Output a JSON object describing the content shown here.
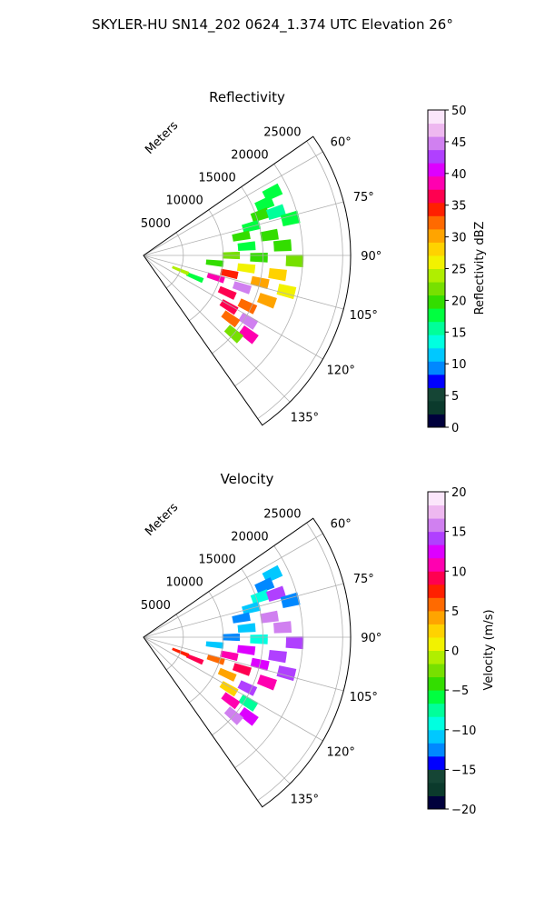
{
  "figure": {
    "suptitle": "SKYLER-HU  SN14_202  0624_1.374 UTC Elevation 26°"
  },
  "chart_data": [
    {
      "type": "heatmap",
      "subtype": "polar-sector-ppi",
      "title": "Reflectivity",
      "radial_label": "Meters",
      "radial_ticks": [
        5000,
        10000,
        15000,
        20000,
        25000
      ],
      "radial_tick_labels": [
        "5000",
        "10000",
        "15000",
        "20000",
        "25000"
      ],
      "r_range": [
        0,
        26000
      ],
      "theta_range_deg": [
        55,
        145
      ],
      "angle_ticks": [
        60,
        75,
        90,
        105,
        120,
        135
      ],
      "angle_tick_labels": [
        "60°",
        "75°",
        "90°",
        "105°",
        "120°",
        "135°"
      ],
      "grid": true,
      "colorbar": {
        "label": "Reflectivity dBZ",
        "range": [
          0,
          50
        ],
        "ticks": [
          0,
          5,
          10,
          15,
          20,
          25,
          30,
          35,
          40,
          45,
          50
        ],
        "tick_labels": [
          "0",
          "5",
          "10",
          "15",
          "20",
          "25",
          "30",
          "35",
          "40",
          "45",
          "50"
        ],
        "colors": [
          "#00003c",
          "#0b3a2c",
          "#154535",
          "#0000ff",
          "#0088ff",
          "#00c8ff",
          "#00ffe0",
          "#00ff9a",
          "#00ff40",
          "#33dd00",
          "#77e000",
          "#b0ee00",
          "#f2f200",
          "#ffd200",
          "#ffa400",
          "#ff6a00",
          "#ff2000",
          "#ff0050",
          "#ff00b0",
          "#dd00ff",
          "#b040ff",
          "#d080f0",
          "#eeb8f0",
          "#fbe6fb"
        ]
      },
      "cells": [
        {
          "r": 18000,
          "theta": 64,
          "v": 18
        },
        {
          "r": 16500,
          "theta": 67,
          "v": 17
        },
        {
          "r": 15500,
          "theta": 71,
          "v": 19
        },
        {
          "r": 17500,
          "theta": 72,
          "v": 16
        },
        {
          "r": 14000,
          "theta": 75,
          "v": 18
        },
        {
          "r": 19000,
          "theta": 76,
          "v": 17
        },
        {
          "r": 12500,
          "theta": 79,
          "v": 19
        },
        {
          "r": 16000,
          "theta": 81,
          "v": 20
        },
        {
          "r": 13000,
          "theta": 85,
          "v": 18
        },
        {
          "r": 17500,
          "theta": 86,
          "v": 19
        },
        {
          "r": 11000,
          "theta": 90,
          "v": 21
        },
        {
          "r": 14500,
          "theta": 91,
          "v": 20
        },
        {
          "r": 19000,
          "theta": 92,
          "v": 22
        },
        {
          "r": 9000,
          "theta": 96,
          "v": 20
        },
        {
          "r": 13000,
          "theta": 97,
          "v": 25
        },
        {
          "r": 17000,
          "theta": 98,
          "v": 28
        },
        {
          "r": 11000,
          "theta": 102,
          "v": 35
        },
        {
          "r": 15000,
          "theta": 103,
          "v": 31
        },
        {
          "r": 18500,
          "theta": 104,
          "v": 27
        },
        {
          "r": 9500,
          "theta": 107,
          "v": 38
        },
        {
          "r": 13000,
          "theta": 108,
          "v": 44
        },
        {
          "r": 16500,
          "theta": 110,
          "v": 30
        },
        {
          "r": 11500,
          "theta": 114,
          "v": 37
        },
        {
          "r": 14500,
          "theta": 116,
          "v": 33
        },
        {
          "r": 12500,
          "theta": 121,
          "v": 36
        },
        {
          "r": 15500,
          "theta": 122,
          "v": 45
        },
        {
          "r": 13500,
          "theta": 126,
          "v": 32
        },
        {
          "r": 16500,
          "theta": 127,
          "v": 38
        },
        {
          "r": 15000,
          "theta": 131,
          "v": 22
        },
        {
          "r": 7000,
          "theta": 113,
          "v": 18
        },
        {
          "r": 5000,
          "theta": 112,
          "v": 24
        }
      ]
    },
    {
      "type": "heatmap",
      "subtype": "polar-sector-ppi",
      "title": "Velocity",
      "radial_label": "Meters",
      "radial_ticks": [
        5000,
        10000,
        15000,
        20000,
        25000
      ],
      "radial_tick_labels": [
        "5000",
        "10000",
        "15000",
        "20000",
        "25000"
      ],
      "r_range": [
        0,
        26000
      ],
      "theta_range_deg": [
        55,
        145
      ],
      "angle_ticks": [
        60,
        75,
        90,
        105,
        120,
        135
      ],
      "angle_tick_labels": [
        "60°",
        "75°",
        "90°",
        "105°",
        "120°",
        "135°"
      ],
      "grid": true,
      "colorbar": {
        "label": "Velocity (m/s)",
        "range": [
          -20,
          20
        ],
        "ticks": [
          -20,
          -15,
          -10,
          -5,
          0,
          5,
          10,
          15,
          20
        ],
        "tick_labels": [
          "−20",
          "−15",
          "−10",
          "−5",
          "0",
          "5",
          "10",
          "15",
          "20"
        ],
        "colors": [
          "#00003c",
          "#0b3a2c",
          "#154535",
          "#0000ff",
          "#0088ff",
          "#00c8ff",
          "#00ffe0",
          "#00ff9a",
          "#00ff40",
          "#33dd00",
          "#77e000",
          "#b0ee00",
          "#f2f200",
          "#ffd200",
          "#ffa400",
          "#ff6a00",
          "#ff2000",
          "#ff0050",
          "#ff00b0",
          "#dd00ff",
          "#b040ff",
          "#d080f0",
          "#eeb8f0",
          "#fbe6fb"
        ]
      },
      "cells": [
        {
          "r": 18000,
          "theta": 64,
          "v": -11
        },
        {
          "r": 16500,
          "theta": 67,
          "v": -12
        },
        {
          "r": 15500,
          "theta": 71,
          "v": -10
        },
        {
          "r": 17500,
          "theta": 72,
          "v": 14
        },
        {
          "r": 14000,
          "theta": 75,
          "v": -11
        },
        {
          "r": 19000,
          "theta": 76,
          "v": -13
        },
        {
          "r": 12500,
          "theta": 79,
          "v": -12
        },
        {
          "r": 16000,
          "theta": 81,
          "v": 16
        },
        {
          "r": 13000,
          "theta": 85,
          "v": -11
        },
        {
          "r": 17500,
          "theta": 86,
          "v": 15
        },
        {
          "r": 11000,
          "theta": 90,
          "v": -12
        },
        {
          "r": 14500,
          "theta": 91,
          "v": -9
        },
        {
          "r": 19000,
          "theta": 92,
          "v": 14
        },
        {
          "r": 9000,
          "theta": 96,
          "v": -11
        },
        {
          "r": 13000,
          "theta": 97,
          "v": 12
        },
        {
          "r": 17000,
          "theta": 98,
          "v": 14
        },
        {
          "r": 11000,
          "theta": 102,
          "v": 11
        },
        {
          "r": 15000,
          "theta": 103,
          "v": 13
        },
        {
          "r": 18500,
          "theta": 104,
          "v": 14
        },
        {
          "r": 9500,
          "theta": 107,
          "v": 6
        },
        {
          "r": 13000,
          "theta": 108,
          "v": 9
        },
        {
          "r": 16500,
          "theta": 110,
          "v": 11
        },
        {
          "r": 11500,
          "theta": 114,
          "v": 4
        },
        {
          "r": 14500,
          "theta": 116,
          "v": 14
        },
        {
          "r": 12500,
          "theta": 121,
          "v": 3
        },
        {
          "r": 15500,
          "theta": 122,
          "v": -8
        },
        {
          "r": 13500,
          "theta": 126,
          "v": 11
        },
        {
          "r": 16500,
          "theta": 127,
          "v": 13
        },
        {
          "r": 15000,
          "theta": 131,
          "v": 15
        },
        {
          "r": 7000,
          "theta": 113,
          "v": 9
        },
        {
          "r": 5000,
          "theta": 112,
          "v": 8
        }
      ]
    }
  ]
}
